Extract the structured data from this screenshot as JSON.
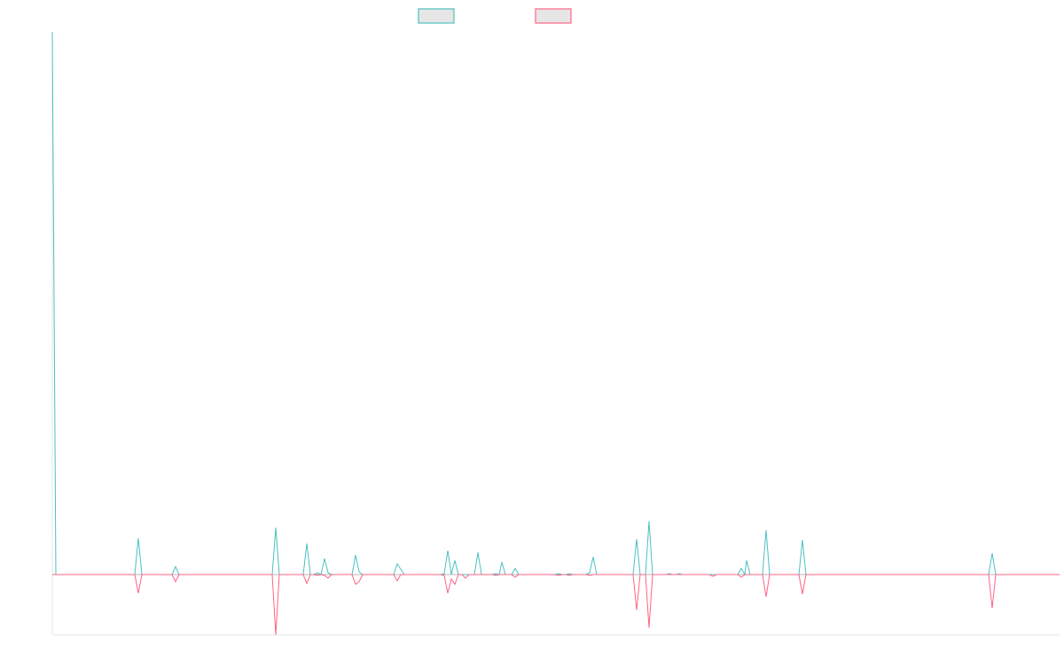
{
  "chart_data": {
    "type": "line",
    "title": "",
    "xlabel": "",
    "ylabel": "",
    "legend_position": "top-center",
    "grid": false,
    "ylim": [
      -68,
      612
    ],
    "xlim": [
      0,
      1136
    ],
    "series": [
      {
        "name": "",
        "color": "#4bc0c0",
        "points": [
          [
            0,
            612
          ],
          [
            4,
            0
          ],
          [
            93,
            0
          ],
          [
            97,
            41
          ],
          [
            101,
            0
          ],
          [
            135,
            0
          ],
          [
            139,
            9
          ],
          [
            143,
            0
          ],
          [
            248,
            0
          ],
          [
            252,
            53
          ],
          [
            256,
            0
          ],
          [
            283,
            0
          ],
          [
            287,
            35
          ],
          [
            291,
            0
          ],
          [
            295,
            0
          ],
          [
            299,
            2
          ],
          [
            303,
            0
          ],
          [
            307,
            18
          ],
          [
            311,
            2
          ],
          [
            315,
            0
          ],
          [
            338,
            0
          ],
          [
            342,
            22
          ],
          [
            346,
            3
          ],
          [
            350,
            0
          ],
          [
            385,
            0
          ],
          [
            389,
            12
          ],
          [
            393,
            6
          ],
          [
            397,
            0
          ],
          [
            438,
            0
          ],
          [
            442,
            1
          ],
          [
            446,
            27
          ],
          [
            450,
            0
          ],
          [
            454,
            16
          ],
          [
            458,
            0
          ],
          [
            476,
            0
          ],
          [
            480,
            25
          ],
          [
            484,
            0
          ],
          [
            496,
            0
          ],
          [
            500,
            1
          ],
          [
            504,
            0
          ],
          [
            507,
            14
          ],
          [
            511,
            0
          ],
          [
            518,
            0
          ],
          [
            522,
            7
          ],
          [
            526,
            0
          ],
          [
            567,
            0
          ],
          [
            571,
            1
          ],
          [
            575,
            0
          ],
          [
            579,
            0
          ],
          [
            583,
            1
          ],
          [
            587,
            0
          ],
          [
            602,
            0
          ],
          [
            606,
            2
          ],
          [
            610,
            20
          ],
          [
            614,
            0
          ],
          [
            655,
            0
          ],
          [
            659,
            40
          ],
          [
            663,
            0
          ],
          [
            669,
            0
          ],
          [
            673,
            60
          ],
          [
            677,
            0
          ],
          [
            692,
            0
          ],
          [
            696,
            1
          ],
          [
            700,
            0
          ],
          [
            703,
            0
          ],
          [
            707,
            1
          ],
          [
            711,
            0
          ],
          [
            714,
            0
          ],
          [
            718,
            0
          ],
          [
            741,
            0
          ],
          [
            745,
            0
          ],
          [
            749,
            0
          ],
          [
            773,
            0
          ],
          [
            777,
            7
          ],
          [
            781,
            0
          ],
          [
            783,
            16
          ],
          [
            787,
            0
          ],
          [
            801,
            0
          ],
          [
            805,
            50
          ],
          [
            809,
            0
          ],
          [
            842,
            0
          ],
          [
            846,
            39
          ],
          [
            850,
            0
          ],
          [
            887,
            0
          ],
          [
            891,
            0
          ],
          [
            895,
            0
          ],
          [
            1056,
            0
          ],
          [
            1060,
            24
          ],
          [
            1064,
            0
          ],
          [
            1093,
            0
          ],
          [
            1097,
            0
          ],
          [
            1101,
            0
          ],
          [
            1136,
            0
          ]
        ]
      },
      {
        "name": "",
        "color": "#ff6384",
        "points": [
          [
            0,
            0
          ],
          [
            4,
            0
          ],
          [
            93,
            0
          ],
          [
            97,
            -21
          ],
          [
            101,
            0
          ],
          [
            135,
            0
          ],
          [
            139,
            -8
          ],
          [
            143,
            0
          ],
          [
            248,
            0
          ],
          [
            252,
            -68
          ],
          [
            256,
            0
          ],
          [
            283,
            0
          ],
          [
            287,
            -10
          ],
          [
            291,
            0
          ],
          [
            295,
            0
          ],
          [
            299,
            -1
          ],
          [
            303,
            0
          ],
          [
            307,
            -1
          ],
          [
            311,
            -4
          ],
          [
            315,
            0
          ],
          [
            338,
            0
          ],
          [
            342,
            -11
          ],
          [
            346,
            -8
          ],
          [
            350,
            0
          ],
          [
            385,
            0
          ],
          [
            389,
            -7
          ],
          [
            393,
            0
          ],
          [
            397,
            0
          ],
          [
            438,
            0
          ],
          [
            442,
            -1
          ],
          [
            446,
            -21
          ],
          [
            450,
            -5
          ],
          [
            454,
            -11
          ],
          [
            458,
            0
          ],
          [
            462,
            0
          ],
          [
            466,
            -4
          ],
          [
            470,
            0
          ],
          [
            476,
            0
          ],
          [
            480,
            0
          ],
          [
            484,
            0
          ],
          [
            496,
            0
          ],
          [
            500,
            -1
          ],
          [
            504,
            0
          ],
          [
            507,
            0
          ],
          [
            511,
            0
          ],
          [
            518,
            0
          ],
          [
            522,
            -3
          ],
          [
            526,
            0
          ],
          [
            567,
            0
          ],
          [
            571,
            -1
          ],
          [
            575,
            0
          ],
          [
            579,
            0
          ],
          [
            583,
            -1
          ],
          [
            587,
            0
          ],
          [
            602,
            0
          ],
          [
            606,
            -1
          ],
          [
            610,
            0
          ],
          [
            614,
            0
          ],
          [
            655,
            0
          ],
          [
            659,
            -40
          ],
          [
            663,
            0
          ],
          [
            669,
            0
          ],
          [
            673,
            -60
          ],
          [
            677,
            0
          ],
          [
            692,
            0
          ],
          [
            696,
            0
          ],
          [
            700,
            0
          ],
          [
            703,
            0
          ],
          [
            707,
            0
          ],
          [
            711,
            0
          ],
          [
            714,
            0
          ],
          [
            718,
            0
          ],
          [
            741,
            0
          ],
          [
            745,
            -2
          ],
          [
            749,
            0
          ],
          [
            773,
            0
          ],
          [
            777,
            -3
          ],
          [
            781,
            0
          ],
          [
            783,
            0
          ],
          [
            787,
            0
          ],
          [
            801,
            0
          ],
          [
            805,
            -25
          ],
          [
            809,
            0
          ],
          [
            842,
            0
          ],
          [
            846,
            -22
          ],
          [
            850,
            0
          ],
          [
            887,
            0
          ],
          [
            891,
            0
          ],
          [
            895,
            0
          ],
          [
            1056,
            0
          ],
          [
            1060,
            -38
          ],
          [
            1064,
            0
          ],
          [
            1093,
            0
          ],
          [
            1097,
            0
          ],
          [
            1101,
            0
          ],
          [
            1136,
            0
          ]
        ]
      }
    ]
  }
}
